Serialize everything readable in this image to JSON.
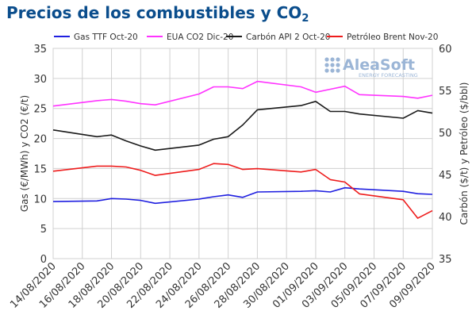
{
  "title_main": "Precios de los combustibles y CO",
  "title_sub": "2",
  "logo": {
    "text": "AleaSoft",
    "tagline": "ENERGY FORECASTING"
  },
  "colors": {
    "title": "#0a4d8c",
    "gas": "#1f1fe0",
    "co2": "#ff33ff",
    "coal": "#1a1a1a",
    "brent": "#ee1c1c",
    "grid": "#d0d0d0",
    "axis": "#333333"
  },
  "chart_data": {
    "type": "line",
    "x": [
      "14/08/2020",
      "17/08/2020",
      "18/08/2020",
      "19/08/2020",
      "20/08/2020",
      "21/08/2020",
      "24/08/2020",
      "25/08/2020",
      "26/08/2020",
      "27/08/2020",
      "28/08/2020",
      "31/08/2020",
      "01/09/2020",
      "02/09/2020",
      "03/09/2020",
      "04/09/2020",
      "07/09/2020",
      "08/09/2020",
      "09/09/2020"
    ],
    "xticks": [
      "14/08/2020",
      "16/08/2020",
      "18/08/2020",
      "20/08/2020",
      "22/08/2020",
      "24/08/2020",
      "26/08/2020",
      "28/08/2020",
      "30/08/2020",
      "01/09/2020",
      "03/09/2020",
      "05/09/2020",
      "07/09/2020",
      "09/09/2020"
    ],
    "left_axis": {
      "label": "Gas (€/MWh) y CO2 (€/t)",
      "range": [
        0,
        35
      ],
      "ticks": [
        0,
        5,
        10,
        15,
        20,
        25,
        30,
        35
      ]
    },
    "right_axis": {
      "label": "Carbón ($/t) y Petróleo ($/bbl)",
      "range": [
        35,
        60
      ],
      "ticks": [
        35,
        40,
        45,
        50,
        55,
        60
      ]
    },
    "grid": true,
    "legend_position": "top",
    "series": [
      {
        "name": "Gas TTF Oct-20",
        "axis": "left",
        "color": "#1f1fe0",
        "values": [
          9.5,
          9.6,
          10.0,
          9.9,
          9.7,
          9.2,
          9.9,
          10.3,
          10.6,
          10.2,
          11.1,
          11.2,
          11.3,
          11.1,
          11.8,
          11.6,
          11.2,
          10.8,
          10.7
        ]
      },
      {
        "name": "EUA CO2 Dic-20",
        "axis": "left",
        "color": "#ff33ff",
        "values": [
          25.4,
          26.3,
          26.5,
          26.2,
          25.8,
          25.6,
          27.4,
          28.6,
          28.6,
          28.3,
          29.5,
          28.6,
          27.7,
          28.2,
          28.7,
          27.3,
          27.0,
          26.7,
          27.2
        ]
      },
      {
        "name": "Carbón API 2 Oct-20",
        "axis": "right",
        "color": "#1a1a1a",
        "values": [
          50.3,
          49.5,
          49.7,
          49.0,
          48.4,
          47.9,
          48.5,
          49.2,
          49.5,
          50.9,
          52.7,
          53.2,
          53.7,
          52.5,
          52.5,
          52.2,
          51.7,
          52.6,
          52.3
        ]
      },
      {
        "name": "Petróleo Brent Nov-20",
        "axis": "right",
        "color": "#ee1c1c",
        "values": [
          45.4,
          46.0,
          46.0,
          45.9,
          45.5,
          44.9,
          45.6,
          46.3,
          46.2,
          45.6,
          45.7,
          45.3,
          45.6,
          44.4,
          44.1,
          42.7,
          42.0,
          39.8,
          40.7
        ]
      }
    ]
  }
}
